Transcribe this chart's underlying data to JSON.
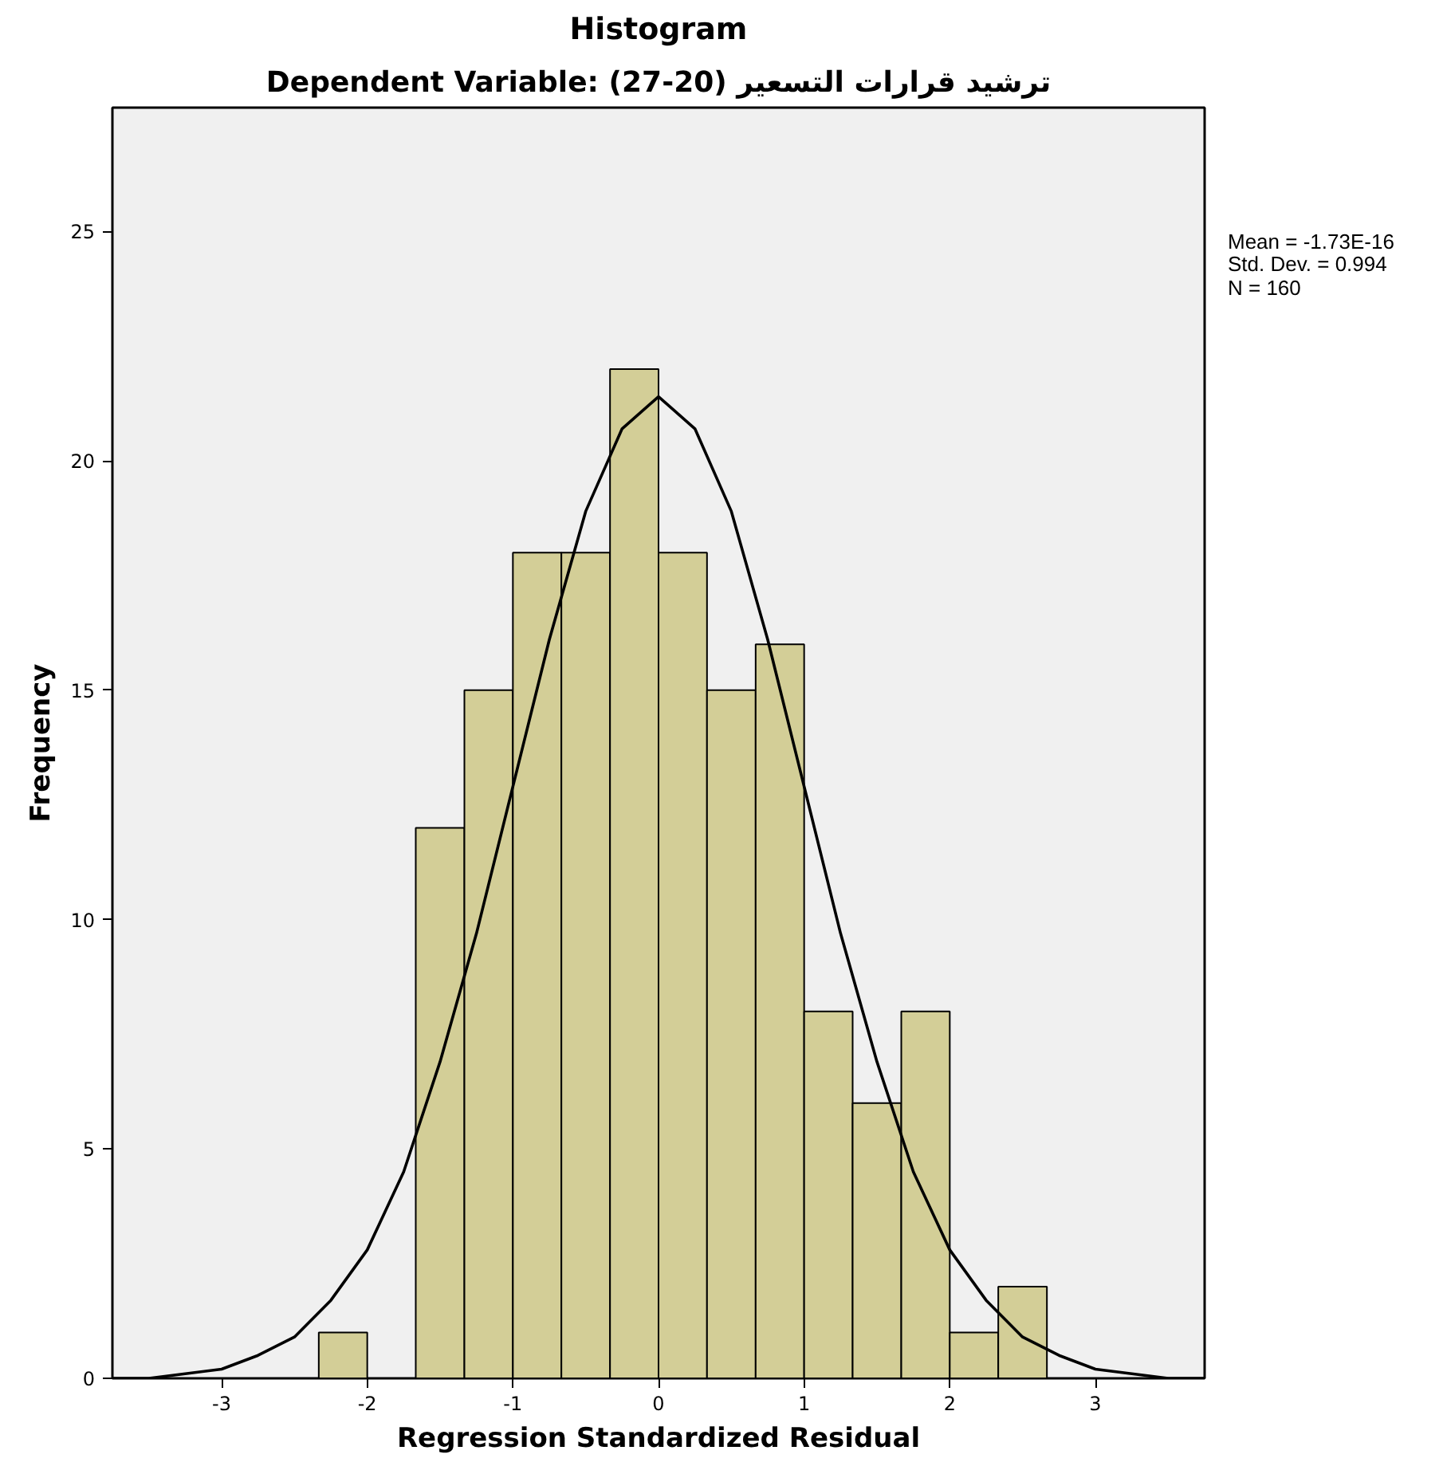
{
  "chart_data": {
    "type": "histogram",
    "title": "Histogram",
    "subtitle": "Dependent Variable: ترشيد قرارات التسعير (20-27)",
    "xlabel": "Regression Standardized Residual",
    "ylabel": "Frequency",
    "bins": [
      -2.333,
      -2,
      -1.667,
      -1.333,
      -1,
      -0.667,
      -0.333,
      0,
      0.333,
      0.667,
      1,
      1.333,
      1.667,
      2,
      2.333,
      2.667
    ],
    "values": [
      1,
      0,
      12,
      15,
      18,
      18,
      22,
      18,
      15,
      16,
      8,
      6,
      8,
      1,
      2
    ],
    "color": "#d3ce97",
    "series": [
      {
        "type": "line",
        "color": "#000000",
        "x": [
          -3.75,
          -3.5,
          -3.25,
          -3,
          -2.75,
          -2.5,
          -2.25,
          -2,
          -1.75,
          -1.5,
          -1.25,
          -1,
          -0.75,
          -0.5,
          -0.25,
          0,
          0.25,
          0.5,
          0.75,
          1,
          1.25,
          1.5,
          1.75,
          2,
          2.25,
          2.5,
          2.75,
          3,
          3.25,
          3.5,
          3.75
        ],
        "values": [
          0.0,
          0.0,
          0.1,
          0.2,
          0.5,
          0.9,
          1.7,
          2.8,
          4.5,
          6.9,
          9.7,
          12.9,
          16.1,
          18.9,
          20.7,
          21.4,
          20.7,
          18.9,
          16.1,
          12.9,
          9.7,
          6.9,
          4.5,
          2.8,
          1.7,
          0.9,
          0.5,
          0.2,
          0.1,
          0.0,
          0.0
        ]
      }
    ],
    "xlim": [
      -3.75,
      3.75
    ],
    "ylim": [
      0,
      27.7
    ],
    "xticks": [
      -3,
      -2,
      -1,
      0,
      1,
      2,
      3
    ],
    "yticks": [
      0,
      5,
      10,
      15,
      20,
      25
    ],
    "grid": false,
    "annotations": [
      "Mean = -1.73E-16",
      "Std. Dev. = 0.994",
      "N = 160"
    ]
  }
}
